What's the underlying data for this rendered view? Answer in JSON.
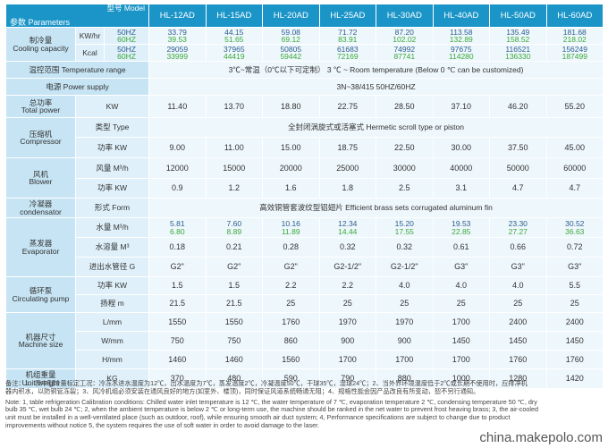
{
  "header": {
    "model_label": "型号 Model",
    "params_label": "参数 Parameters",
    "models": [
      "HL-12AD",
      "HL-15AD",
      "HL-20AD",
      "HL-25AD",
      "HL-30AD",
      "HL-40AD",
      "HL-50AD",
      "HL-60AD"
    ]
  },
  "cooling": {
    "label": "制冷量\nCooling capacity",
    "kw_unit": "KW/hr",
    "kcal_unit": "Kcal",
    "hz50": "50HZ",
    "hz60": "60HZ",
    "kw50": [
      "33.79",
      "44.15",
      "59.08",
      "71.72",
      "87.20",
      "113.58",
      "135.49",
      "181.68"
    ],
    "kw60": [
      "39.53",
      "51.65",
      "69.12",
      "83.91",
      "102.02",
      "132.89",
      "158.52",
      "218.02"
    ],
    "kcal50": [
      "29059",
      "37965",
      "50805",
      "61683",
      "74992",
      "97675",
      "116521",
      "156249"
    ],
    "kcal60": [
      "33999",
      "44419",
      "59442",
      "72169",
      "87741",
      "114280",
      "136330",
      "187499"
    ]
  },
  "temp": {
    "label": "温控范围 Temperature range",
    "value": "3℃~常温（0℃以下可定制）  3 ℃ ~ Room temperature (Below 0 ℃ can be customized)"
  },
  "power_supply": {
    "label": "电源 Power supply",
    "value": "3N~38/415 50HZ/60HZ"
  },
  "total_power": {
    "label": "总功率\nTotal power",
    "unit": "KW",
    "values": [
      "11.40",
      "13.70",
      "18.80",
      "22.75",
      "28.50",
      "37.10",
      "46.20",
      "55.20"
    ]
  },
  "compressor": {
    "label": "压缩机\nCompressor",
    "type_label": "类型 Type",
    "type_value": "全封闭涡旋式或活塞式 Hermetic scroll type or piston",
    "power_label": "功率 KW",
    "power": [
      "9.00",
      "11.00",
      "15.00",
      "18.75",
      "22.50",
      "30.00",
      "37.50",
      "45.00"
    ]
  },
  "blower": {
    "label": "风机\nBlower",
    "air_label": "风量 M³/h",
    "air": [
      "12000",
      "15000",
      "20000",
      "25000",
      "30000",
      "40000",
      "50000",
      "60000"
    ],
    "power_label": "功率 KW",
    "power": [
      "0.9",
      "1.2",
      "1.6",
      "1.8",
      "2.5",
      "3.1",
      "4.7",
      "4.7"
    ]
  },
  "condenser": {
    "label": "冷凝器\ncondensator",
    "form_label": "形式 Form",
    "form_value": "高效铜管套波纹型铝翅片 Efficient brass sets corrugated aluminum fin"
  },
  "evaporator": {
    "label": "蒸发器\nEvaporator",
    "water_label": "水量 M³/h",
    "water50": [
      "5.81",
      "7.60",
      "10.16",
      "12.34",
      "15.20",
      "19.53",
      "23.30",
      "30.52"
    ],
    "water60": [
      "6.80",
      "8.89",
      "11.89",
      "14.44",
      "17.55",
      "22.85",
      "27.27",
      "36.63"
    ],
    "tank_label": "水溶量 M³",
    "tank": [
      "0.18",
      "0.21",
      "0.28",
      "0.32",
      "0.32",
      "0.61",
      "0.66",
      "0.72"
    ],
    "pipe_label": "进出水管径 G",
    "pipe": [
      "G2\"",
      "G2\"",
      "G2\"",
      "G2-1/2\"",
      "G2-1/2\"",
      "G3\"",
      "G3\"",
      "G3\""
    ]
  },
  "pump": {
    "label": "循环泵\nCirculating pump",
    "power_label": "功率 KW",
    "power": [
      "1.5",
      "1.5",
      "2.2",
      "2.2",
      "4.0",
      "4.0",
      "4.0",
      "5.5"
    ],
    "lift_label": "扬程 m",
    "lift": [
      "21.5",
      "21.5",
      "25",
      "25",
      "25",
      "25",
      "25",
      "25"
    ]
  },
  "size": {
    "label": "机器尺寸\nMachine size",
    "l_label": "L/mm",
    "l": [
      "1550",
      "1550",
      "1760",
      "1970",
      "1970",
      "1700",
      "2400",
      "2400"
    ],
    "w_label": "W/mm",
    "w": [
      "750",
      "750",
      "860",
      "900",
      "900",
      "1450",
      "1450",
      "1450"
    ],
    "h_label": "H/mm",
    "h": [
      "1460",
      "1460",
      "1560",
      "1700",
      "1700",
      "1700",
      "1760",
      "1760"
    ]
  },
  "weight": {
    "label": "机组重量\nUnit weight",
    "unit": "KG",
    "values": [
      "370",
      "480",
      "590",
      "790",
      "880",
      "1000",
      "1280",
      "1420"
    ]
  },
  "notes": [
    "备注：1、表中制冷量标定工况：冷冻水进水温度为12℃，出水温度为7℃，蒸发温度2℃，冷凝温度50℃，干球35℃，湿球24℃；2、当外界环境温度低于2℃或长期不使用时，应排净机",
    "器内积水，以防铜管冻裂；3、风冷机组必须安装在通风良好的地方(如室外、楼顶)，同时保证风道系统畅通无阻；4、规格性能会因产品改良有所变动，恕不另行通知。",
    "Note: 1, table refrigeration Calibration conditions: Chilled water inlet temperature is 12 ℃, the water temperature of 7 ℃, evaporation temperature 2 ℃, condensing temperature 50 ℃, dry",
    "bulb 35 ℃, wet bulb 24 ℃; 2, when the ambient temperature is below 2 ℃ or long-term use, the machine should be ranked in the net water to prevent frost heaving brass; 3, the air-cooled",
    "unit must be installed in a well-ventilated place (such as outdoor, roof), while ensuring smooth air duct system; 4, Performance specifications are subject to change due to product",
    "improvements without notice 5, the system requires the use of soft water in order to avoid damage to the laser."
  ],
  "watermark": "china.makepolo.com"
}
